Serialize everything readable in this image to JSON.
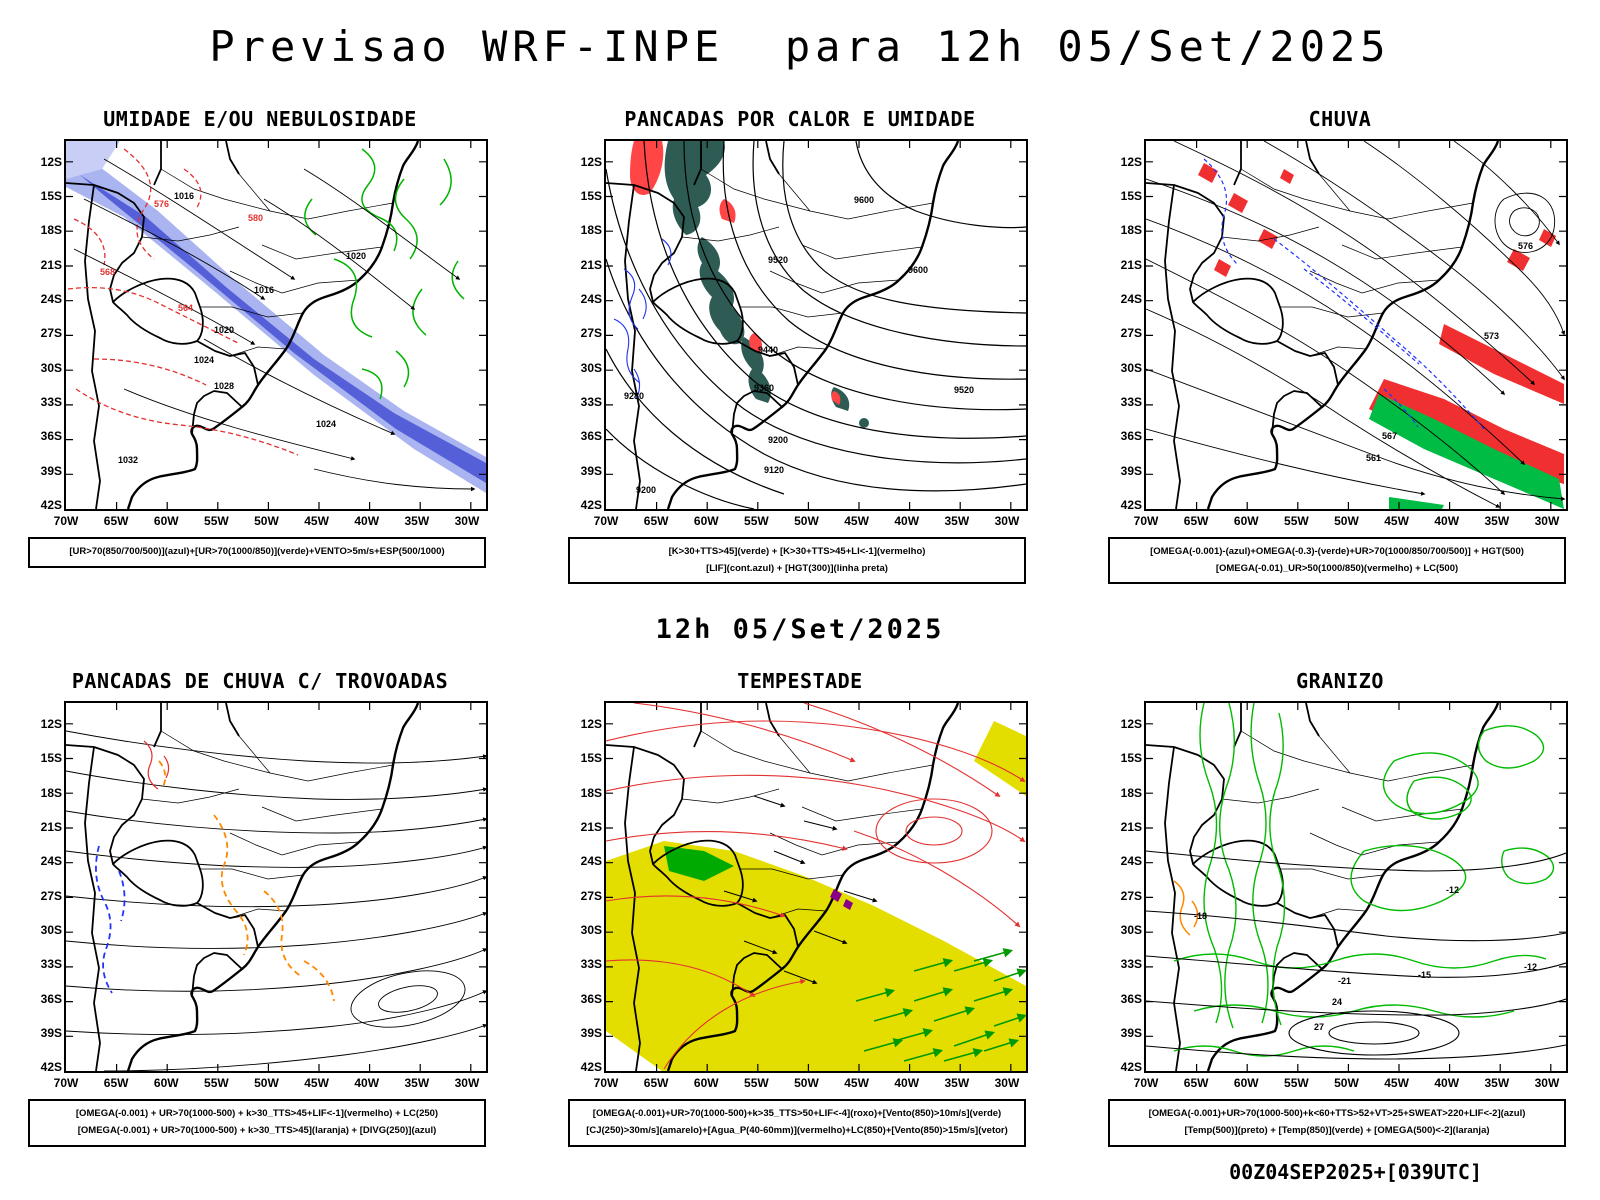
{
  "page": {
    "title": "Previsao WRF-INPE  para 12h 05/Set/2025",
    "subtitle": "12h 05/Set/2025",
    "footer": "00Z04SEP2025+[039UTC]"
  },
  "map_axes": {
    "lat": [
      "12S",
      "15S",
      "18S",
      "21S",
      "24S",
      "27S",
      "30S",
      "33S",
      "36S",
      "39S",
      "42S"
    ],
    "lon": [
      "70W",
      "65W",
      "60W",
      "55W",
      "50W",
      "45W",
      "40W",
      "35W",
      "30W"
    ]
  },
  "colors": {
    "light_blue_fill": "#aab4f0",
    "blue_fill": "#5560d8",
    "pale_blue_fill": "#c9cef7",
    "green": "#00b400",
    "red": "#e33030",
    "bright_red": "#f03030",
    "dark_teal": "#2e5c55",
    "blue_line": "#2233ee",
    "orange": "#ff8800",
    "yellow": "#e4de00",
    "green_fill": "#00bb44",
    "purple": "#880088"
  },
  "panels": [
    {
      "id": "umidade",
      "title": "UMIDADE E/OU NEBULOSIDADE",
      "legend": [
        "[UR>70(850/700/500)](azul)+[UR>70(1000/850)](verde)+VENTO>5m/s+ESP(500/1000)"
      ]
    },
    {
      "id": "pancadas-calor",
      "title": "PANCADAS POR CALOR E UMIDADE",
      "legend": [
        "[K>30+TTS>45](verde) + [K>30+TTS>45+LI<-1](vermelho)",
        "[LIF](cont.azul) + [HGT(300)](linha preta)"
      ]
    },
    {
      "id": "chuva",
      "title": "CHUVA",
      "legend": [
        "[OMEGA(-0.001)-(azul)+OMEGA(-0.3)-(verde)+UR>70(1000/850/700/500)] + HGT(500)",
        "[OMEGA(-0.01)_UR>50(1000/850)(vermelho) + LC(500)"
      ]
    },
    {
      "id": "trovoadas",
      "title": "PANCADAS DE CHUVA C/ TROVOADAS",
      "legend": [
        "[OMEGA(-0.001) + UR>70(1000-500) + k>30_TTS>45+LIF<-1](vermelho) + LC(250)",
        "[OMEGA(-0.001) + UR>70(1000-500) + k>30_TTS>45](laranja) + [DIVG(250)](azul)"
      ]
    },
    {
      "id": "tempestade",
      "title": "TEMPESTADE",
      "legend": [
        "[OMEGA(-0.001)+UR>70(1000-500)+k>35_TTS>50+LIF<-4](roxo)+[Vento(850)>10m/s](verde)",
        "[CJ(250)>30m/s](amarelo)+[Agua_P(40-60mm)](vermelho)+LC(850)+[Vento(850)>15m/s](vetor)"
      ]
    },
    {
      "id": "granizo",
      "title": "GRANIZO",
      "legend": [
        "[OMEGA(-0.001)+UR>70(1000-500)+k<60+TTS>52+VT>25+SWEAT>220+LIF<-2](azul)",
        "[Temp(500)](preto) + [Temp(850)](verde) + [OMEGA(500)<-2](laranja)"
      ]
    }
  ],
  "labels": {
    "umidade": [
      "1016",
      "1020",
      "1016",
      "1020",
      "1024",
      "1028",
      "1024",
      "1032",
      "576",
      "580",
      "568",
      "564"
    ],
    "pancadas_calor": [
      "9600",
      "9600",
      "9520",
      "9520",
      "9440",
      "9360",
      "9280",
      "9200",
      "9120",
      "9200"
    ],
    "chuva": [
      "576",
      "573",
      "567",
      "561"
    ],
    "granizo": [
      "-12",
      "-18",
      "-21",
      "-15",
      "-12",
      "24",
      "27"
    ]
  }
}
